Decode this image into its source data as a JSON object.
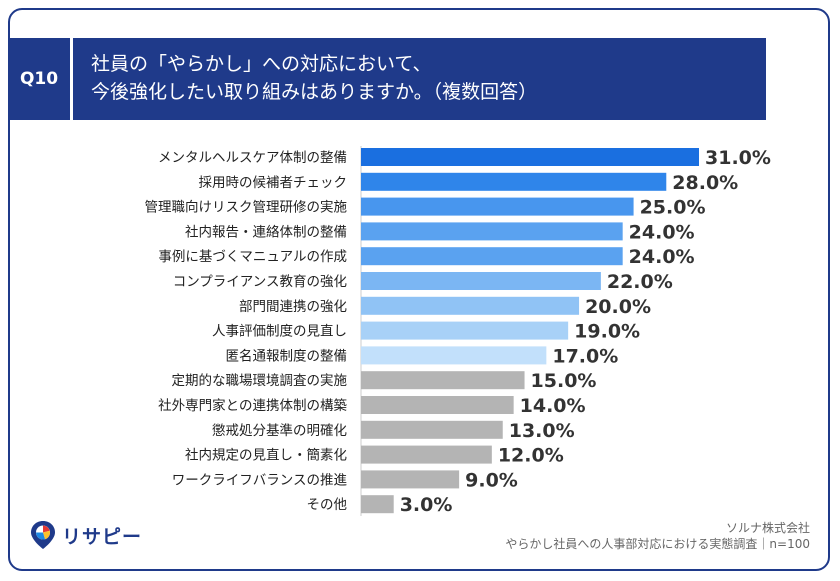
{
  "header": {
    "badge": "Q10",
    "title_line1": "社員の「やらかし」への対応において、",
    "title_line2": "今後強化したい取り組みはありますか。（複数回答）"
  },
  "chart_data": {
    "type": "bar",
    "orientation": "horizontal",
    "categories": [
      "メンタルヘルスケア体制の整備",
      "採用時の候補者チェック",
      "管理職向けリスク管理研修の実施",
      "社内報告・連絡体制の整備",
      "事例に基づくマニュアルの作成",
      "コンプライアンス教育の強化",
      "部門間連携の強化",
      "人事評価制度の見直し",
      "匿名通報制度の整備",
      "定期的な職場環境調査の実施",
      "社外専門家との連携体制の構築",
      "懲戒処分基準の明確化",
      "社内規定の見直し・簡素化",
      "ワークライフバランスの推進",
      "その他"
    ],
    "values": [
      31.0,
      28.0,
      25.0,
      24.0,
      24.0,
      22.0,
      20.0,
      19.0,
      17.0,
      15.0,
      14.0,
      13.0,
      12.0,
      9.0,
      3.0
    ],
    "value_labels": [
      "31.0%",
      "28.0%",
      "25.0%",
      "24.0%",
      "24.0%",
      "22.0%",
      "20.0%",
      "19.0%",
      "17.0%",
      "15.0%",
      "14.0%",
      "13.0%",
      "12.0%",
      "9.0%",
      "3.0%"
    ],
    "colors": [
      "#1a6fe0",
      "#2f85ea",
      "#4896ee",
      "#5aa2f0",
      "#5aa2f0",
      "#7bb6f3",
      "#90c3f5",
      "#a8d1f7",
      "#c2e0fb",
      "#b4b4b4",
      "#b4b4b4",
      "#b4b4b4",
      "#b4b4b4",
      "#b4b4b4",
      "#b4b4b4"
    ],
    "xlim": [
      0,
      31
    ]
  },
  "footer": {
    "company": "ソルナ株式会社",
    "survey": "やらかし社員への人事部対応における実態調査｜n=100",
    "logo_text": "リサピー"
  }
}
